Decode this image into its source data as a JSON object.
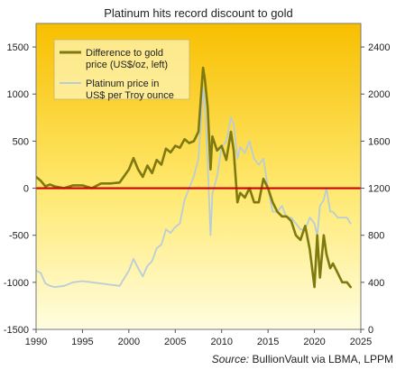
{
  "chart_data": {
    "type": "line",
    "title": "Platinum hits record discount to gold",
    "source_label": "Source:",
    "source_text": " BullionVault via LBMA, LPPM",
    "x_ticks": [
      "1990",
      "1995",
      "2000",
      "2005",
      "2010",
      "2015",
      "2020",
      "2025"
    ],
    "xlim": [
      1990,
      2025
    ],
    "y_left_ticks": [
      "-1500",
      "-1000",
      "-500",
      "0",
      "500",
      "1000",
      "1500"
    ],
    "y_left_lim": [
      -1500,
      1750
    ],
    "y_right_ticks": [
      "0",
      "400",
      "800",
      "1200",
      "1600",
      "2000",
      "2400"
    ],
    "y_right_lim": [
      0,
      2600
    ],
    "zero_line": true,
    "legend_position": "top-left",
    "colors": {
      "difference": "#7f7a10",
      "platinum": "#b9cdd8",
      "zero_line": "#cc0000",
      "bg_top": "#f8bf00",
      "bg_bottom": "#fffde0"
    },
    "series": [
      {
        "name": "Difference to gold price (US$/oz, left)",
        "legend_lines": [
          "Difference to gold",
          "price (US$/oz, left)"
        ],
        "axis": "left",
        "x": [
          1990,
          1990.5,
          1991,
          1991.5,
          1992,
          1993,
          1994,
          1995,
          1996,
          1997,
          1998,
          1999,
          2000,
          2000.5,
          2001,
          2001.5,
          2002,
          2002.5,
          2003,
          2003.5,
          2004,
          2004.5,
          2005,
          2005.5,
          2006,
          2006.5,
          2007,
          2007.5,
          2008,
          2008.2,
          2008.5,
          2008.8,
          2009,
          2009.5,
          2010,
          2010.5,
          2011,
          2011.3,
          2011.7,
          2012,
          2012.5,
          2013,
          2013.5,
          2014,
          2014.5,
          2015,
          2015.5,
          2016,
          2016.5,
          2017,
          2017.5,
          2018,
          2018.5,
          2019,
          2019.5,
          2020,
          2020.3,
          2020.6,
          2021,
          2021.3,
          2021.7,
          2022,
          2022.5,
          2023,
          2023.5,
          2023.9
        ],
        "values": [
          120,
          80,
          20,
          40,
          20,
          0,
          30,
          30,
          0,
          50,
          50,
          60,
          200,
          320,
          200,
          120,
          240,
          160,
          300,
          250,
          420,
          380,
          450,
          430,
          520,
          480,
          500,
          600,
          1280,
          1150,
          850,
          200,
          550,
          400,
          450,
          300,
          600,
          400,
          -150,
          -50,
          -100,
          0,
          -150,
          -150,
          100,
          0,
          -150,
          -250,
          -300,
          -300,
          -350,
          -500,
          -550,
          -400,
          -650,
          -1050,
          -500,
          -950,
          -500,
          -700,
          -850,
          -800,
          -900,
          -1000,
          -1000,
          -1050
        ]
      },
      {
        "name": "Platinum price in US$ per Troy ounce",
        "legend_lines": [
          "Platinum price in",
          "US$ per Troy ounce"
        ],
        "axis": "right",
        "x": [
          1990,
          1990.5,
          1991,
          1991.5,
          1992,
          1993,
          1994,
          1995,
          1996,
          1997,
          1998,
          1999,
          2000,
          2000.5,
          2001,
          2001.5,
          2002,
          2002.5,
          2003,
          2003.5,
          2004,
          2004.5,
          2005,
          2005.5,
          2006,
          2006.5,
          2007,
          2007.5,
          2008,
          2008.2,
          2008.5,
          2008.8,
          2009,
          2009.5,
          2010,
          2010.5,
          2011,
          2011.3,
          2011.7,
          2012,
          2012.5,
          2013,
          2013.5,
          2014,
          2014.5,
          2015,
          2015.5,
          2016,
          2016.5,
          2017,
          2017.5,
          2018,
          2018.5,
          2019,
          2019.5,
          2020,
          2020.3,
          2020.6,
          2021,
          2021.3,
          2021.7,
          2022,
          2022.5,
          2023,
          2023.5,
          2023.9
        ],
        "values": [
          500,
          480,
          390,
          370,
          360,
          370,
          400,
          410,
          400,
          390,
          380,
          370,
          500,
          600,
          520,
          450,
          540,
          580,
          690,
          720,
          850,
          820,
          870,
          900,
          1100,
          1200,
          1300,
          1450,
          2050,
          1900,
          1400,
          800,
          1150,
          1300,
          1550,
          1600,
          1800,
          1750,
          1450,
          1550,
          1500,
          1600,
          1450,
          1400,
          1450,
          1200,
          1000,
          1000,
          1050,
          950,
          950,
          900,
          850,
          850,
          950,
          900,
          800,
          1050,
          1100,
          1200,
          1000,
          1000,
          950,
          950,
          950,
          900
        ]
      }
    ]
  }
}
